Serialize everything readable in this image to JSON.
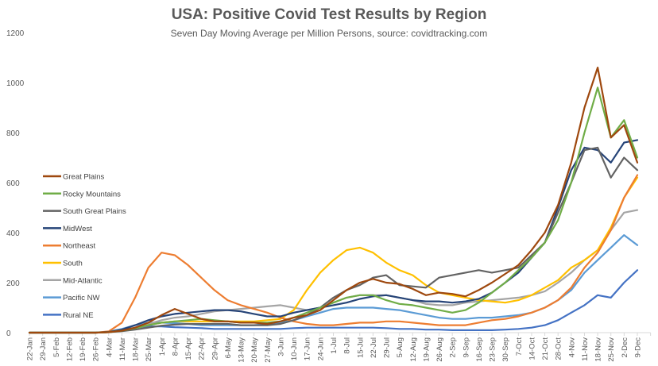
{
  "chart_data": {
    "type": "line",
    "title": "USA: Positive Covid Test Results by Region",
    "subtitle": "Seven Day Moving  Average per Million Persons, source: covidtracking.com",
    "xlabel": "",
    "ylabel": "",
    "ylim": [
      0,
      1200
    ],
    "yticks": [
      0,
      200,
      400,
      600,
      800,
      1000,
      1200
    ],
    "grid": false,
    "legend_position": "left",
    "x": [
      "22-Jan",
      "29-Jan",
      "5-Feb",
      "12-Feb",
      "19-Feb",
      "26-Feb",
      "4-Mar",
      "11-Mar",
      "18-Mar",
      "25-Mar",
      "1-Apr",
      "8-Apr",
      "15-Apr",
      "22-Apr",
      "29-Apr",
      "6-May",
      "13-May",
      "20-May",
      "27-May",
      "3-Jun",
      "10-Jun",
      "17-Jun",
      "24-Jun",
      "1-Jul",
      "8-Jul",
      "15-Jul",
      "22-Jul",
      "29-Jul",
      "5-Aug",
      "12-Aug",
      "19-Aug",
      "26-Aug",
      "2-Sep",
      "9-Sep",
      "16-Sep",
      "23-Sep",
      "30-Sep",
      "7-Oct",
      "14-Oct",
      "21-Oct",
      "28-Oct",
      "4-Nov",
      "11-Nov",
      "18-Nov",
      "25-Nov",
      "2-Dec",
      "9-Dec"
    ],
    "series": [
      {
        "name": "Great Plains",
        "color": "#9e480e",
        "values": [
          0,
          0,
          0,
          0,
          0,
          0,
          2,
          8,
          20,
          40,
          70,
          95,
          75,
          55,
          45,
          45,
          40,
          40,
          35,
          45,
          60,
          70,
          90,
          130,
          170,
          200,
          215,
          200,
          195,
          175,
          150,
          160,
          155,
          145,
          170,
          200,
          235,
          270,
          330,
          400,
          510,
          680,
          900,
          1060,
          780,
          830,
          680
        ]
      },
      {
        "name": "Rocky Mountains",
        "color": "#70ad47",
        "values": [
          0,
          0,
          0,
          0,
          0,
          0,
          2,
          8,
          18,
          30,
          40,
          45,
          50,
          55,
          50,
          45,
          40,
          40,
          40,
          45,
          60,
          80,
          100,
          120,
          140,
          150,
          150,
          130,
          115,
          110,
          100,
          90,
          80,
          90,
          120,
          160,
          200,
          250,
          300,
          360,
          450,
          600,
          800,
          980,
          780,
          850,
          700
        ]
      },
      {
        "name": "South Great Plains",
        "color": "#636363",
        "values": [
          0,
          0,
          0,
          0,
          0,
          0,
          2,
          6,
          12,
          20,
          28,
          32,
          35,
          35,
          35,
          35,
          30,
          30,
          30,
          35,
          50,
          70,
          100,
          140,
          170,
          190,
          220,
          230,
          190,
          185,
          180,
          220,
          230,
          240,
          250,
          240,
          250,
          260,
          310,
          360,
          480,
          600,
          730,
          740,
          620,
          700,
          650
        ]
      },
      {
        "name": "MidWest",
        "color": "#264478",
        "values": [
          0,
          0,
          0,
          0,
          0,
          0,
          3,
          12,
          30,
          50,
          65,
          75,
          80,
          85,
          90,
          90,
          85,
          75,
          65,
          65,
          80,
          90,
          100,
          110,
          120,
          135,
          145,
          150,
          140,
          130,
          125,
          125,
          120,
          125,
          135,
          160,
          200,
          240,
          300,
          360,
          500,
          650,
          740,
          730,
          680,
          760,
          770
        ]
      },
      {
        "name": "Northeast",
        "color": "#ed7d31",
        "values": [
          0,
          0,
          0,
          0,
          0,
          0,
          5,
          40,
          140,
          260,
          320,
          310,
          270,
          220,
          170,
          130,
          110,
          95,
          80,
          60,
          45,
          35,
          30,
          30,
          35,
          40,
          40,
          45,
          45,
          40,
          35,
          30,
          30,
          30,
          40,
          50,
          55,
          65,
          80,
          100,
          130,
          180,
          260,
          320,
          410,
          540,
          630
        ]
      },
      {
        "name": "South",
        "color": "#ffc000",
        "values": [
          0,
          0,
          0,
          0,
          0,
          0,
          2,
          8,
          18,
          30,
          40,
          45,
          45,
          45,
          45,
          45,
          45,
          45,
          50,
          55,
          90,
          170,
          240,
          290,
          330,
          340,
          320,
          280,
          250,
          230,
          190,
          160,
          150,
          140,
          130,
          125,
          120,
          130,
          150,
          180,
          210,
          260,
          290,
          330,
          420,
          540,
          620
        ]
      },
      {
        "name": "Mid-Atlantic",
        "color": "#a5a5a5",
        "values": [
          0,
          0,
          0,
          0,
          0,
          0,
          2,
          8,
          20,
          35,
          50,
          60,
          65,
          75,
          85,
          90,
          95,
          100,
          105,
          110,
          100,
          90,
          100,
          120,
          140,
          150,
          150,
          150,
          140,
          130,
          115,
          110,
          110,
          120,
          125,
          130,
          135,
          140,
          150,
          165,
          200,
          240,
          290,
          330,
          410,
          480,
          490
        ]
      },
      {
        "name": "Pacific NW",
        "color": "#5b9bd5",
        "values": [
          0,
          0,
          0,
          0,
          0,
          0,
          4,
          15,
          30,
          40,
          40,
          38,
          35,
          30,
          30,
          30,
          30,
          30,
          35,
          40,
          50,
          65,
          80,
          95,
          100,
          100,
          100,
          95,
          90,
          80,
          70,
          60,
          55,
          55,
          60,
          60,
          65,
          70,
          80,
          100,
          130,
          170,
          240,
          290,
          340,
          390,
          350
        ]
      },
      {
        "name": "Rural NE",
        "color": "#4472c4",
        "values": [
          0,
          0,
          0,
          0,
          0,
          0,
          2,
          10,
          20,
          25,
          25,
          22,
          20,
          18,
          15,
          15,
          15,
          15,
          15,
          15,
          18,
          20,
          20,
          20,
          20,
          20,
          20,
          18,
          15,
          15,
          12,
          12,
          10,
          10,
          10,
          10,
          12,
          15,
          20,
          30,
          50,
          80,
          110,
          150,
          140,
          200,
          250
        ]
      }
    ]
  }
}
